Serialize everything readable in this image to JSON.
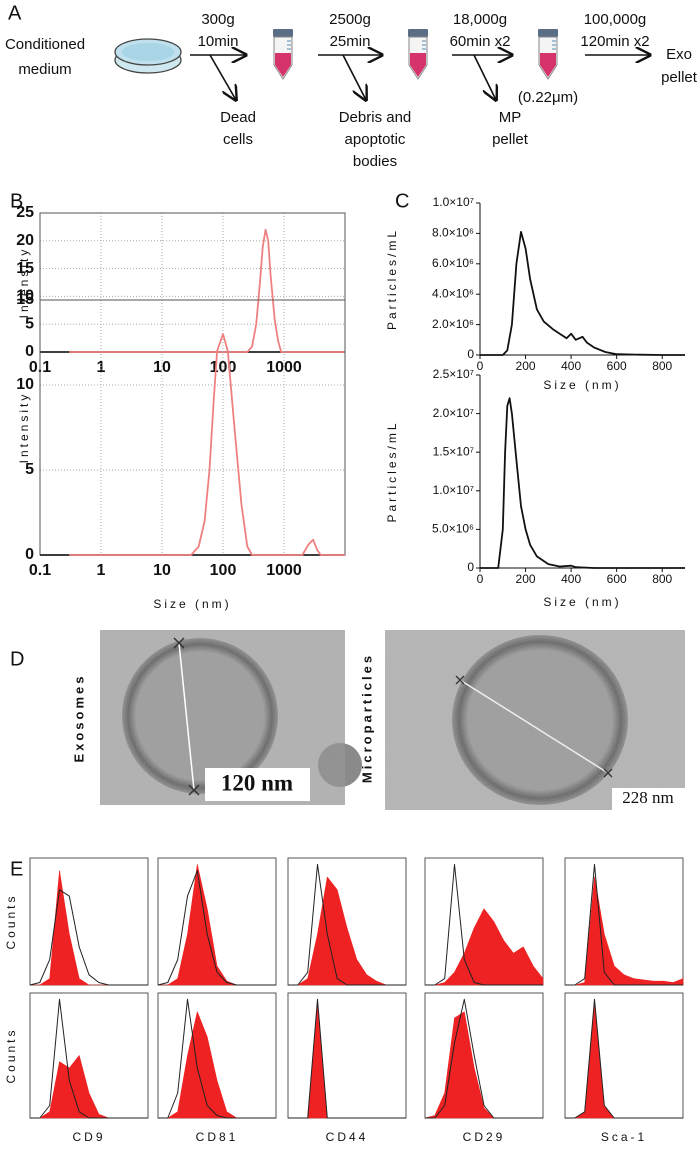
{
  "panel_labels": [
    "A",
    "B",
    "C",
    "D",
    "E"
  ],
  "workflow": {
    "start": [
      "Conditioned",
      "medium"
    ],
    "steps": [
      {
        "speed": "300g",
        "time": "10min",
        "waste": [
          "Dead",
          "cells"
        ]
      },
      {
        "speed": "2500g",
        "time": "25min",
        "waste": [
          "Debris and",
          "apoptotic",
          "bodies"
        ]
      },
      {
        "speed": "18,000g",
        "time": "60min x2",
        "waste": [
          "MP",
          "pellet"
        ],
        "filter": "(0.22μm)"
      },
      {
        "speed": "100,000g",
        "time": "120min x2"
      }
    ],
    "end": [
      "Exo",
      "pellet"
    ]
  },
  "micrographs": [
    {
      "label": "Exosomes",
      "scale": "120 nm"
    },
    {
      "label": "Microparticles",
      "scale": "228 nm"
    }
  ],
  "chart_data": [
    {
      "type": "line",
      "xlog": true,
      "frame": true,
      "grid": true,
      "ylabel": "Intensity",
      "xlim": [
        0.1,
        10000
      ],
      "xticks": [
        0.1,
        1,
        10,
        100,
        1000
      ],
      "ylim": [
        0,
        25
      ],
      "yticks": [
        0,
        5,
        10,
        15,
        20,
        25
      ],
      "series": [
        {
          "color": "#222222",
          "x": [
            0.1,
            10000
          ],
          "values": [
            0,
            0
          ]
        },
        {
          "color": "#f08080",
          "x": [
            0.3,
            250,
            300,
            350,
            400,
            450,
            500,
            550,
            600,
            700,
            800,
            900,
            10000
          ],
          "values": [
            0,
            0,
            1,
            5,
            12,
            19,
            22,
            20,
            14,
            6,
            2,
            0,
            0
          ]
        }
      ]
    },
    {
      "type": "line",
      "xlog": true,
      "frame": true,
      "grid": true,
      "ylabel": "Intensity",
      "xlabel": "Size (nm)",
      "xlim": [
        0.1,
        10000
      ],
      "xticks": [
        0.1,
        1,
        10,
        100,
        1000
      ],
      "ylim": [
        0,
        15
      ],
      "yticks": [
        0,
        5,
        10,
        15
      ],
      "series": [
        {
          "color": "#222222",
          "x": [
            0.1,
            10000
          ],
          "values": [
            0,
            0
          ]
        },
        {
          "color": "#f08080",
          "x": [
            0.3,
            30,
            40,
            50,
            60,
            70,
            80,
            100,
            120,
            150,
            200,
            250,
            300,
            2000,
            2500,
            3000,
            3500,
            4000,
            10000
          ],
          "values": [
            0,
            0,
            0.5,
            2,
            5,
            9,
            12,
            13,
            12,
            8,
            3,
            0.5,
            0,
            0,
            0.6,
            0.9,
            0.3,
            0,
            0
          ]
        }
      ]
    },
    {
      "type": "line",
      "frame": false,
      "grid": false,
      "ylabel": "Particles/mL",
      "xlabel": "Size (nm)",
      "xlim": [
        0,
        900
      ],
      "xticks": [
        0,
        200,
        400,
        600,
        800
      ],
      "ylim": [
        0,
        10000000
      ],
      "yticks": [
        0,
        {
          "value": 2000000,
          "label": "2.0×10⁶"
        },
        {
          "value": 4000000,
          "label": "4.0×10⁶"
        },
        {
          "value": 6000000,
          "label": "6.0×10⁶"
        },
        {
          "value": 8000000,
          "label": "8.0×10⁶"
        },
        {
          "value": 10000000,
          "label": "1.0×10⁷"
        }
      ],
      "series": [
        {
          "color": "#111111",
          "x": [
            0,
            100,
            120,
            140,
            160,
            180,
            200,
            220,
            250,
            280,
            320,
            350,
            380,
            400,
            420,
            450,
            470,
            500,
            550,
            600,
            700,
            800,
            900
          ],
          "values": [
            0,
            0,
            300000,
            2000000,
            6000000,
            8100000,
            7000000,
            5000000,
            3000000,
            2200000,
            1700000,
            1400000,
            1100000,
            1400000,
            1000000,
            1200000,
            800000,
            500000,
            200000,
            50000,
            20000,
            0,
            0
          ]
        }
      ]
    },
    {
      "type": "line",
      "frame": false,
      "grid": false,
      "ylabel": "Particles/mL",
      "xlabel": "Size (nm)",
      "xlim": [
        0,
        900
      ],
      "xticks": [
        0,
        200,
        400,
        600,
        800
      ],
      "ylim": [
        0,
        25000000
      ],
      "yticks": [
        0,
        {
          "value": 5000000,
          "label": "5.0×10⁶"
        },
        {
          "value": 10000000,
          "label": "1.0×10⁷"
        },
        {
          "value": 15000000,
          "label": "1.5×10⁷"
        },
        {
          "value": 20000000,
          "label": "2.0×10⁷"
        },
        {
          "value": 25000000,
          "label": "2.5×10⁷"
        }
      ],
      "series": [
        {
          "color": "#111111",
          "x": [
            0,
            80,
            100,
            110,
            120,
            130,
            140,
            160,
            180,
            200,
            220,
            250,
            300,
            350,
            400,
            420,
            500,
            900
          ],
          "values": [
            0,
            0,
            5000000,
            15000000,
            21000000,
            22000000,
            20000000,
            14000000,
            8000000,
            5000000,
            3000000,
            1500000,
            500000,
            200000,
            300000,
            100000,
            0,
            0
          ]
        }
      ]
    },
    {
      "type": "area",
      "frame": true,
      "ylabel": "Counts",
      "x": [
        -1,
        -0.5,
        0,
        0.5,
        1,
        1.5,
        2,
        2.5,
        3,
        3.5,
        4,
        4.5,
        5
      ],
      "xlim": [
        -1,
        5
      ],
      "ylim": [
        0,
        100
      ],
      "series": [
        {
          "color": "#ee2222",
          "fill": true,
          "values": [
            0,
            0,
            5,
            90,
            40,
            5,
            0,
            0,
            0,
            0,
            0,
            0,
            0
          ]
        },
        {
          "color": "#222222",
          "fill": false,
          "values": [
            0,
            2,
            20,
            75,
            70,
            30,
            8,
            2,
            0,
            0,
            0,
            0,
            0
          ]
        }
      ]
    },
    {
      "type": "area",
      "frame": true,
      "x": [
        -1,
        -0.5,
        0,
        0.5,
        1,
        1.5,
        2,
        2.5,
        3,
        3.5,
        4,
        4.5,
        5
      ],
      "xlim": [
        -1,
        5
      ],
      "ylim": [
        0,
        100
      ],
      "series": [
        {
          "color": "#ee2222",
          "fill": true,
          "values": [
            0,
            0,
            5,
            40,
            95,
            60,
            15,
            3,
            0,
            0,
            0,
            0,
            0
          ]
        },
        {
          "color": "#222222",
          "fill": false,
          "values": [
            0,
            2,
            20,
            70,
            90,
            40,
            10,
            2,
            0,
            0,
            0,
            0,
            0
          ]
        }
      ]
    },
    {
      "type": "area",
      "frame": true,
      "x": [
        -1,
        -0.5,
        0,
        0.5,
        1,
        1.5,
        2,
        2.5,
        3,
        3.5,
        4,
        4.5,
        5
      ],
      "xlim": [
        -1,
        5
      ],
      "ylim": [
        0,
        100
      ],
      "series": [
        {
          "color": "#ee2222",
          "fill": true,
          "values": [
            0,
            0,
            5,
            40,
            85,
            75,
            45,
            20,
            8,
            3,
            0,
            0,
            0
          ]
        },
        {
          "color": "#222222",
          "fill": false,
          "values": [
            0,
            0,
            10,
            95,
            40,
            5,
            0,
            0,
            0,
            0,
            0,
            0,
            0
          ]
        }
      ]
    },
    {
      "type": "area",
      "frame": true,
      "x": [
        -1,
        -0.5,
        0,
        0.5,
        1,
        1.5,
        2,
        2.5,
        3,
        3.5,
        4,
        4.5,
        5
      ],
      "xlim": [
        -1,
        5
      ],
      "ylim": [
        0,
        100
      ],
      "series": [
        {
          "color": "#ee2222",
          "fill": true,
          "values": [
            0,
            0,
            2,
            10,
            25,
            45,
            60,
            50,
            35,
            25,
            30,
            15,
            5
          ]
        },
        {
          "color": "#222222",
          "fill": false,
          "values": [
            0,
            0,
            5,
            95,
            20,
            2,
            0,
            0,
            0,
            0,
            0,
            0,
            0
          ]
        }
      ]
    },
    {
      "type": "area",
      "frame": true,
      "x": [
        -1,
        -0.5,
        0,
        0.5,
        1,
        1.5,
        2,
        2.5,
        3,
        3.5,
        4,
        4.5,
        5
      ],
      "xlim": [
        -1,
        5
      ],
      "ylim": [
        0,
        100
      ],
      "series": [
        {
          "color": "#ee2222",
          "fill": true,
          "values": [
            0,
            0,
            2,
            85,
            40,
            15,
            8,
            5,
            4,
            3,
            3,
            2,
            5
          ]
        },
        {
          "color": "#222222",
          "fill": false,
          "values": [
            0,
            0,
            5,
            95,
            10,
            0,
            0,
            0,
            0,
            0,
            0,
            0,
            0
          ]
        }
      ]
    },
    {
      "type": "area",
      "frame": true,
      "ylabel": "Counts",
      "xlabel": "CD9",
      "x": [
        -1,
        -0.5,
        0,
        0.5,
        1,
        1.5,
        2,
        2.5,
        3,
        3.5,
        4,
        4.5,
        5
      ],
      "xlim": [
        -1,
        5
      ],
      "ylim": [
        0,
        100
      ],
      "series": [
        {
          "color": "#ee2222",
          "fill": true,
          "values": [
            0,
            0,
            5,
            45,
            40,
            50,
            20,
            3,
            0,
            0,
            0,
            0,
            0
          ]
        },
        {
          "color": "#222222",
          "fill": false,
          "values": [
            0,
            0,
            10,
            95,
            30,
            5,
            0,
            0,
            0,
            0,
            0,
            0,
            0
          ]
        }
      ]
    },
    {
      "type": "area",
      "frame": true,
      "xlabel": "CD81",
      "x": [
        -1,
        -0.5,
        0,
        0.5,
        1,
        1.5,
        2,
        2.5,
        3,
        3.5,
        4,
        4.5,
        5
      ],
      "xlim": [
        -1,
        5
      ],
      "ylim": [
        0,
        100
      ],
      "series": [
        {
          "color": "#ee2222",
          "fill": true,
          "values": [
            0,
            0,
            5,
            50,
            85,
            65,
            30,
            5,
            0,
            0,
            0,
            0,
            0
          ]
        },
        {
          "color": "#222222",
          "fill": false,
          "values": [
            0,
            0,
            20,
            95,
            40,
            10,
            2,
            0,
            0,
            0,
            0,
            0,
            0
          ]
        }
      ]
    },
    {
      "type": "area",
      "frame": true,
      "xlabel": "CD44",
      "x": [
        -1,
        -0.5,
        0,
        0.5,
        1,
        1.5,
        2,
        2.5,
        3,
        3.5,
        4,
        4.5,
        5
      ],
      "xlim": [
        -1,
        5
      ],
      "ylim": [
        0,
        100
      ],
      "series": [
        {
          "color": "#ee2222",
          "fill": true,
          "values": [
            0,
            0,
            0,
            90,
            0,
            0,
            0,
            0,
            0,
            0,
            0,
            0,
            0
          ]
        },
        {
          "color": "#222222",
          "fill": false,
          "values": [
            0,
            0,
            0,
            95,
            0,
            0,
            0,
            0,
            0,
            0,
            0,
            0,
            0
          ]
        }
      ]
    },
    {
      "type": "area",
      "frame": true,
      "xlabel": "CD29",
      "x": [
        -1,
        -0.5,
        0,
        0.5,
        1,
        1.5,
        2,
        2.5,
        3,
        3.5,
        4,
        4.5,
        5
      ],
      "xlim": [
        -1,
        5
      ],
      "ylim": [
        0,
        100
      ],
      "series": [
        {
          "color": "#ee2222",
          "fill": true,
          "values": [
            0,
            2,
            20,
            80,
            85,
            40,
            8,
            0,
            0,
            0,
            0,
            0,
            0
          ]
        },
        {
          "color": "#222222",
          "fill": false,
          "values": [
            0,
            0,
            10,
            60,
            95,
            50,
            10,
            0,
            0,
            0,
            0,
            0,
            0
          ]
        }
      ]
    },
    {
      "type": "area",
      "frame": true,
      "xlabel": "Sca-1",
      "x": [
        -1,
        -0.5,
        0,
        0.5,
        1,
        1.5,
        2,
        2.5,
        3,
        3.5,
        4,
        4.5,
        5
      ],
      "xlim": [
        -1,
        5
      ],
      "ylim": [
        0,
        100
      ],
      "series": [
        {
          "color": "#ee2222",
          "fill": true,
          "values": [
            0,
            0,
            5,
            90,
            10,
            0,
            0,
            0,
            0,
            0,
            0,
            0,
            0
          ]
        },
        {
          "color": "#222222",
          "fill": false,
          "values": [
            0,
            0,
            5,
            95,
            10,
            0,
            0,
            0,
            0,
            0,
            0,
            0,
            0
          ]
        }
      ]
    }
  ]
}
